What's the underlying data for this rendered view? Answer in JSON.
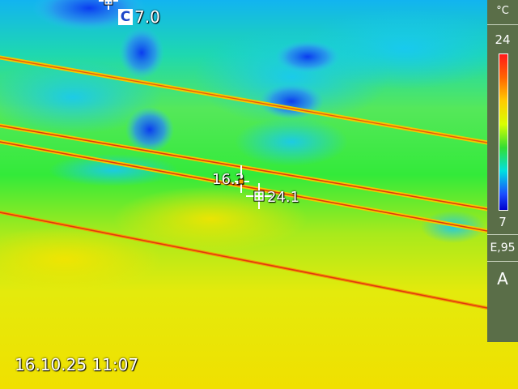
{
  "thermal_image": {
    "cold_spot": {
      "marker": "C",
      "value": "7.0"
    },
    "spot_1": {
      "value": "16.2"
    },
    "hot_spot": {
      "value": "24.1"
    },
    "timestamp": "16.10.25 11:07"
  },
  "scale_bar": {
    "unit": "°C",
    "max": "24",
    "min": "7",
    "emissivity": "E,95",
    "mode": "A"
  },
  "colors": {
    "hot": "#ff1a1a",
    "warm": "#ffdd00",
    "mid": "#33dd33",
    "cool": "#00ccee",
    "cold": "#1a3dff"
  }
}
